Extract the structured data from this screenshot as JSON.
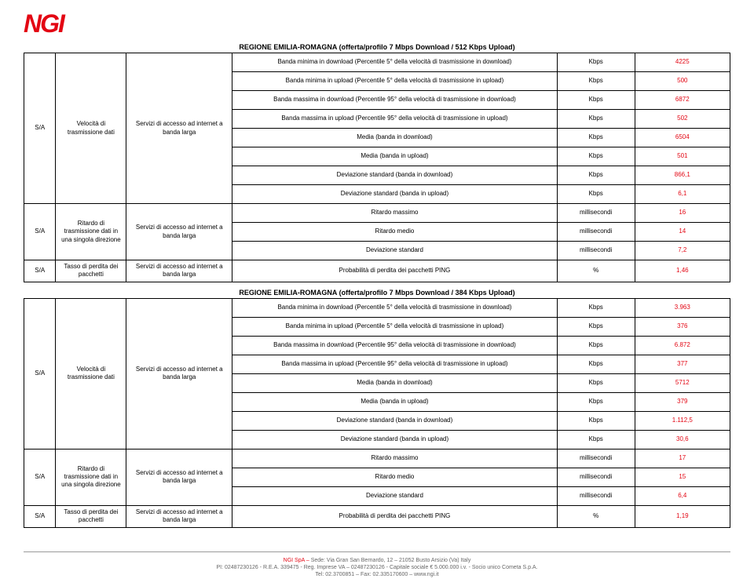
{
  "logo": "NGI",
  "colors": {
    "accent": "#e30613",
    "border": "#000000",
    "bg": "#ffffff",
    "footer": "#666666"
  },
  "tables": [
    {
      "title": "REGIONE EMILIA-ROMAGNA (offerta/profilo 7 Mbps Download / 512 Kbps Upload)",
      "sections": [
        {
          "sa": "S/A",
          "cat": "Velocità di trasmissione dati",
          "svc": "Servizi di accesso ad internet a banda larga",
          "rows": [
            {
              "metric": "Banda minima in download (Percentile 5° della velocità di trasmissione in download)",
              "unit": "Kbps",
              "val": "4225"
            },
            {
              "metric": "Banda minima in upload (Percentile 5° della velocità di trasmissione in upload)",
              "unit": "Kbps",
              "val": "500"
            },
            {
              "metric": "Banda massima in download (Percentile 95° della velocità di trasmissione in download)",
              "unit": "Kbps",
              "val": "6872"
            },
            {
              "metric": "Banda massima in upload (Percentile 95° della velocità di trasmissione in upload)",
              "unit": "Kbps",
              "val": "502"
            },
            {
              "metric": "Media (banda in download)",
              "unit": "Kbps",
              "val": "6504"
            },
            {
              "metric": "Media (banda in upload)",
              "unit": "Kbps",
              "val": "501"
            },
            {
              "metric": "Deviazione standard (banda in download)",
              "unit": "Kbps",
              "val": "866,1"
            },
            {
              "metric": "Deviazione standard (banda in upload)",
              "unit": "Kbps",
              "val": "6,1"
            }
          ]
        },
        {
          "sa": "S/A",
          "cat": "Ritardo di trasmissione dati in una singola direzione",
          "svc": "Servizi di accesso ad internet a banda larga",
          "rows": [
            {
              "metric": "Ritardo massimo",
              "unit": "millisecondi",
              "val": "16"
            },
            {
              "metric": "Ritardo medio",
              "unit": "millisecondi",
              "val": "14"
            },
            {
              "metric": "Deviazione standard",
              "unit": "millisecondi",
              "val": "7,2"
            }
          ]
        },
        {
          "sa": "S/A",
          "cat": "Tasso di perdita dei pacchetti",
          "svc": "Servizi di accesso ad internet a banda larga",
          "rows": [
            {
              "metric": "Probabilità di perdita dei pacchetti PING",
              "unit": "%",
              "val": "1,46"
            }
          ]
        }
      ]
    },
    {
      "title": "REGIONE EMILIA-ROMAGNA (offerta/profilo 7 Mbps Download / 384 Kbps Upload)",
      "sections": [
        {
          "sa": "S/A",
          "cat": "Velocità di trasmissione dati",
          "svc": "Servizi di accesso ad internet a banda larga",
          "rows": [
            {
              "metric": "Banda minima in download (Percentile 5° della velocità di trasmissione in download)",
              "unit": "Kbps",
              "val": "3.963"
            },
            {
              "metric": "Banda minima in upload (Percentile 5° della velocità di trasmissione in upload)",
              "unit": "Kbps",
              "val": "376"
            },
            {
              "metric": "Banda massima in download (Percentile 95° della velocità di trasmissione in download)",
              "unit": "Kbps",
              "val": "6.872"
            },
            {
              "metric": "Banda massima in upload (Percentile 95° della velocità di trasmissione in upload)",
              "unit": "Kbps",
              "val": "377"
            },
            {
              "metric": "Media (banda in download)",
              "unit": "Kbps",
              "val": "5712"
            },
            {
              "metric": "Media (banda in upload)",
              "unit": "Kbps",
              "val": "379"
            },
            {
              "metric": "Deviazione standard (banda in download)",
              "unit": "Kbps",
              "val": "1.112,5"
            },
            {
              "metric": "Deviazione standard (banda in upload)",
              "unit": "Kbps",
              "val": "30,6"
            }
          ]
        },
        {
          "sa": "S/A",
          "cat": "Ritardo di trasmissione dati in una singola direzione",
          "svc": "Servizi di accesso ad internet a banda larga",
          "rows": [
            {
              "metric": "Ritardo massimo",
              "unit": "millisecondi",
              "val": "17"
            },
            {
              "metric": "Ritardo medio",
              "unit": "millisecondi",
              "val": "15"
            },
            {
              "metric": "Deviazione standard",
              "unit": "millisecondi",
              "val": "6,4"
            }
          ]
        },
        {
          "sa": "S/A",
          "cat": "Tasso di perdita dei pacchetti",
          "svc": "Servizi di accesso ad internet a banda larga",
          "rows": [
            {
              "metric": "Probabilità di perdita dei pacchetti PING",
              "unit": "%",
              "val": "1,19"
            }
          ]
        }
      ]
    }
  ],
  "footer": {
    "line1a": "NGI SpA – ",
    "line1b": "Sede: Via Gran San Bernardo, 12 – 21052 Busto Arsizio (Va) Italy",
    "line2": "PI: 02487230126 - R.E.A. 339475 - Reg. Imprese VA – 02487230126 - Capitale sociale € 5.000.000 i.v. - Socio unico Cometa S.p.A.",
    "line3": "Tel: 02.3700851 – Fax: 02.335170600 – www.ngi.it"
  }
}
